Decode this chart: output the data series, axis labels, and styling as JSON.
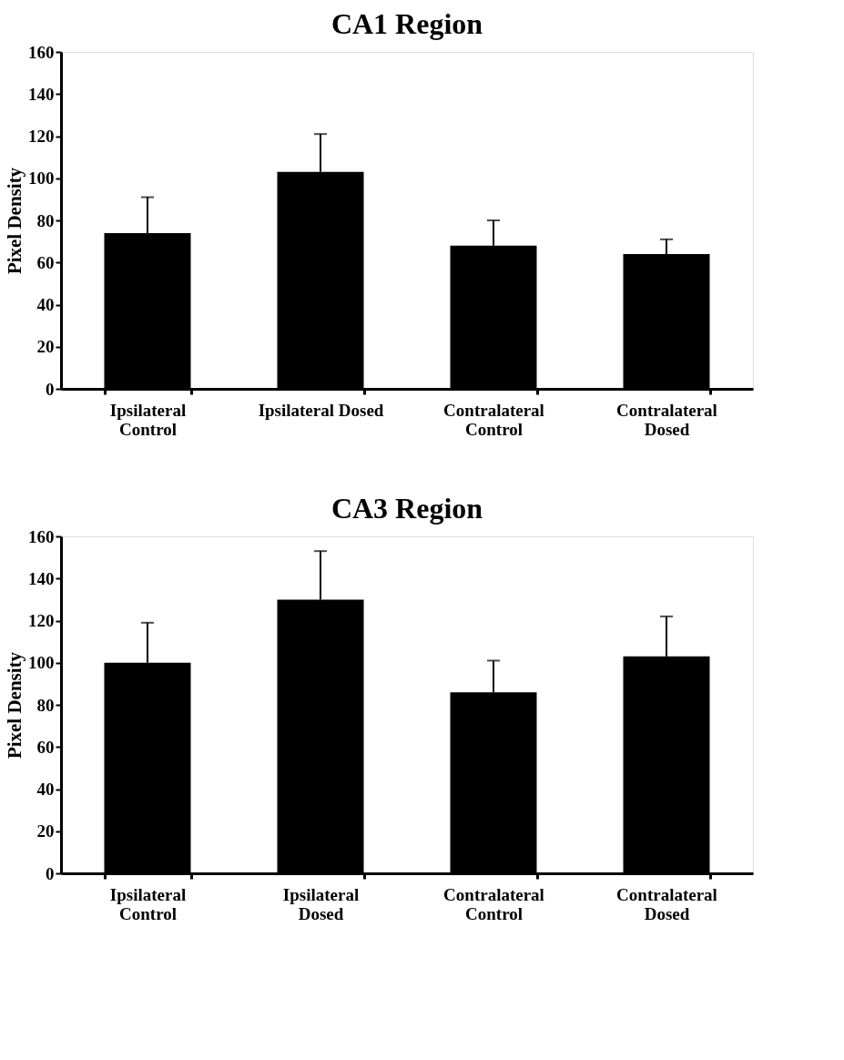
{
  "chart_data": [
    {
      "type": "bar",
      "title": "CA1 Region",
      "ylabel": "Pixel Density",
      "categories": [
        "Ipsilateral\nControl",
        "Ipsilateral Dosed",
        "Contralateral\nControl",
        "Contralateral\nDosed"
      ],
      "values": [
        74,
        103,
        68,
        64
      ],
      "errors": [
        [
          74,
          91
        ],
        [
          103,
          121
        ],
        [
          68,
          80
        ],
        [
          64,
          71
        ]
      ],
      "color": "#000000",
      "ylim": [
        0,
        160
      ],
      "yticks": [
        0,
        20,
        40,
        60,
        80,
        100,
        120,
        140,
        160
      ],
      "grid": false
    },
    {
      "type": "bar",
      "title": "CA3 Region",
      "ylabel": "Pixel Density",
      "categories": [
        "Ipsilateral\nControl",
        "Ipsilateral\nDosed",
        "Contralateral\nControl",
        "Contralateral\nDosed"
      ],
      "values": [
        100,
        130,
        86,
        103
      ],
      "errors": [
        [
          100,
          119
        ],
        [
          130,
          153
        ],
        [
          86,
          101
        ],
        [
          103,
          122
        ]
      ],
      "color": "#000000",
      "ylim": [
        0,
        160
      ],
      "yticks": [
        0,
        20,
        40,
        60,
        80,
        100,
        120,
        140,
        160
      ],
      "grid": false
    }
  ]
}
